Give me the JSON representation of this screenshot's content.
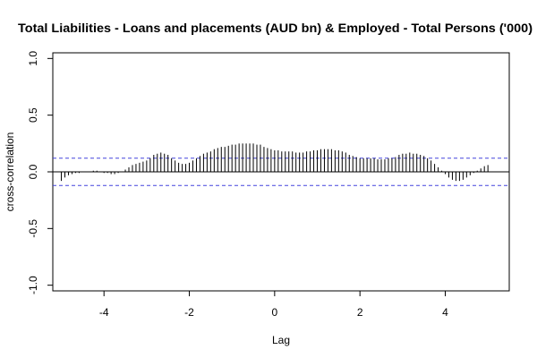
{
  "chart_data": {
    "type": "bar",
    "title": "Total Liabilities - Loans and placements (AUD bn) & Employed - Total Persons ('000)",
    "xlabel": "Lag",
    "ylabel": "cross-correlation",
    "xlim": [
      -5.2,
      5.5
    ],
    "ylim": [
      -1.05,
      1.05
    ],
    "x_ticks": [
      -4,
      -2,
      0,
      2,
      4
    ],
    "x_tick_labels": [
      "-4",
      "-2",
      "0",
      "2",
      "4"
    ],
    "y_ticks": [
      -1.0,
      -0.5,
      0.0,
      0.5,
      1.0
    ],
    "y_tick_labels": [
      "-1.0",
      "-0.5",
      "0.0",
      "0.5",
      "1.0"
    ],
    "confidence_band": 0.12,
    "lag_step": 0.0833,
    "lags": [
      -5.0,
      -4.9167,
      -4.8333,
      -4.75,
      -4.6667,
      -4.5833,
      -4.5,
      -4.4167,
      -4.3333,
      -4.25,
      -4.1667,
      -4.0833,
      -4.0,
      -3.9167,
      -3.8333,
      -3.75,
      -3.6667,
      -3.5833,
      -3.5,
      -3.4167,
      -3.3333,
      -3.25,
      -3.1667,
      -3.0833,
      -3.0,
      -2.9167,
      -2.8333,
      -2.75,
      -2.6667,
      -2.5833,
      -2.5,
      -2.4167,
      -2.3333,
      -2.25,
      -2.1667,
      -2.0833,
      -2.0,
      -1.9167,
      -1.8333,
      -1.75,
      -1.6667,
      -1.5833,
      -1.5,
      -1.4167,
      -1.3333,
      -1.25,
      -1.1667,
      -1.0833,
      -1.0,
      -0.9167,
      -0.8333,
      -0.75,
      -0.6667,
      -0.5833,
      -0.5,
      -0.4167,
      -0.3333,
      -0.25,
      -0.1667,
      -0.0833,
      0.0,
      0.0833,
      0.1667,
      0.25,
      0.3333,
      0.4167,
      0.5,
      0.5833,
      0.6667,
      0.75,
      0.8333,
      0.9167,
      1.0,
      1.0833,
      1.1667,
      1.25,
      1.3333,
      1.4167,
      1.5,
      1.5833,
      1.6667,
      1.75,
      1.8333,
      1.9167,
      2.0,
      2.0833,
      2.1667,
      2.25,
      2.3333,
      2.4167,
      2.5,
      2.5833,
      2.6667,
      2.75,
      2.8333,
      2.9167,
      3.0,
      3.0833,
      3.1667,
      3.25,
      3.3333,
      3.4167,
      3.5,
      3.5833,
      3.6667,
      3.75,
      3.8333,
      3.9167,
      4.0,
      4.0833,
      4.1667,
      4.25,
      4.3333,
      4.4167,
      4.5,
      4.5833,
      4.6667,
      4.75,
      4.8333,
      4.9167,
      5.0
    ],
    "values": [
      -0.08,
      -0.05,
      -0.03,
      -0.02,
      -0.01,
      -0.01,
      0.0,
      0.0,
      0.0,
      0.01,
      0.01,
      0.0,
      -0.01,
      -0.01,
      -0.02,
      -0.02,
      -0.01,
      0.0,
      0.02,
      0.04,
      0.06,
      0.07,
      0.08,
      0.09,
      0.1,
      0.12,
      0.15,
      0.16,
      0.17,
      0.16,
      0.15,
      0.12,
      0.1,
      0.08,
      0.07,
      0.07,
      0.08,
      0.1,
      0.12,
      0.14,
      0.16,
      0.17,
      0.18,
      0.2,
      0.21,
      0.22,
      0.22,
      0.23,
      0.24,
      0.24,
      0.25,
      0.25,
      0.25,
      0.25,
      0.25,
      0.24,
      0.24,
      0.22,
      0.21,
      0.2,
      0.19,
      0.19,
      0.18,
      0.18,
      0.18,
      0.18,
      0.17,
      0.17,
      0.17,
      0.18,
      0.18,
      0.19,
      0.19,
      0.2,
      0.2,
      0.2,
      0.2,
      0.19,
      0.19,
      0.18,
      0.17,
      0.15,
      0.14,
      0.13,
      0.12,
      0.12,
      0.12,
      0.12,
      0.12,
      0.11,
      0.11,
      0.11,
      0.12,
      0.12,
      0.13,
      0.15,
      0.16,
      0.16,
      0.17,
      0.16,
      0.16,
      0.15,
      0.14,
      0.12,
      0.1,
      0.07,
      0.04,
      0.01,
      -0.02,
      -0.05,
      -0.07,
      -0.08,
      -0.08,
      -0.07,
      -0.05,
      -0.03,
      -0.01,
      0.01,
      0.03,
      0.05,
      0.06
    ]
  }
}
